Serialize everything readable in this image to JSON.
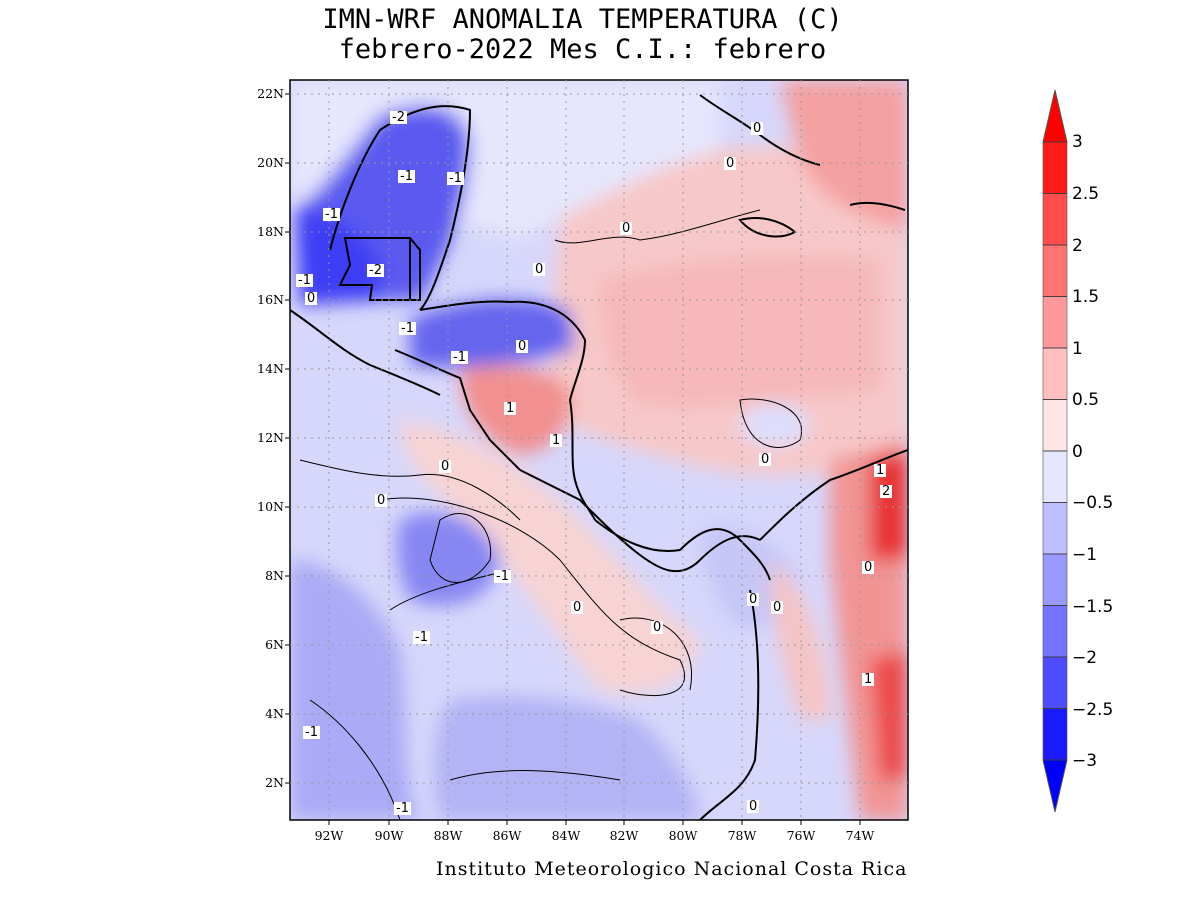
{
  "title_line1": "IMN-WRF  ANOMALIA TEMPERATURA (C)",
  "title_line2": "febrero-2022 Mes C.I.: febrero",
  "footer": "Instituto Meteorologico Nacional Costa Rica",
  "lat_ticks": [
    "22N",
    "20N",
    "18N",
    "16N",
    "14N",
    "12N",
    "10N",
    "8N",
    "6N",
    "4N",
    "2N"
  ],
  "lon_ticks": [
    "92W",
    "90W",
    "88W",
    "86W",
    "84W",
    "82W",
    "80W",
    "78W",
    "76W",
    "74W"
  ],
  "colorbar": {
    "labels": [
      "3",
      "2.5",
      "2",
      "1.5",
      "1",
      "0.5",
      "0",
      "−0.5",
      "−1",
      "−1.5",
      "−2",
      "−2.5",
      "−3"
    ],
    "colors": [
      "#ff1a1a",
      "#ff4d4d",
      "#ff7373",
      "#ff9999",
      "#ffbfbf",
      "#ffe6e6",
      "#e6e6ff",
      "#bfbfff",
      "#9999ff",
      "#7373ff",
      "#4d4dff",
      "#1a1aff"
    ],
    "over_color": "#ff0000",
    "under_color": "#0000ff"
  },
  "contour_labels": [
    "-2",
    "-1",
    "-1",
    "-1",
    "-2",
    "-1",
    "0",
    "-1",
    "-1",
    "0",
    "0",
    "0",
    "0",
    "0",
    "0",
    "1",
    "1",
    "0",
    "0",
    "1",
    "2",
    "0",
    "-1",
    "0",
    "0",
    "0",
    "-1",
    "0",
    "-1",
    "-1",
    "1",
    "0"
  ]
}
